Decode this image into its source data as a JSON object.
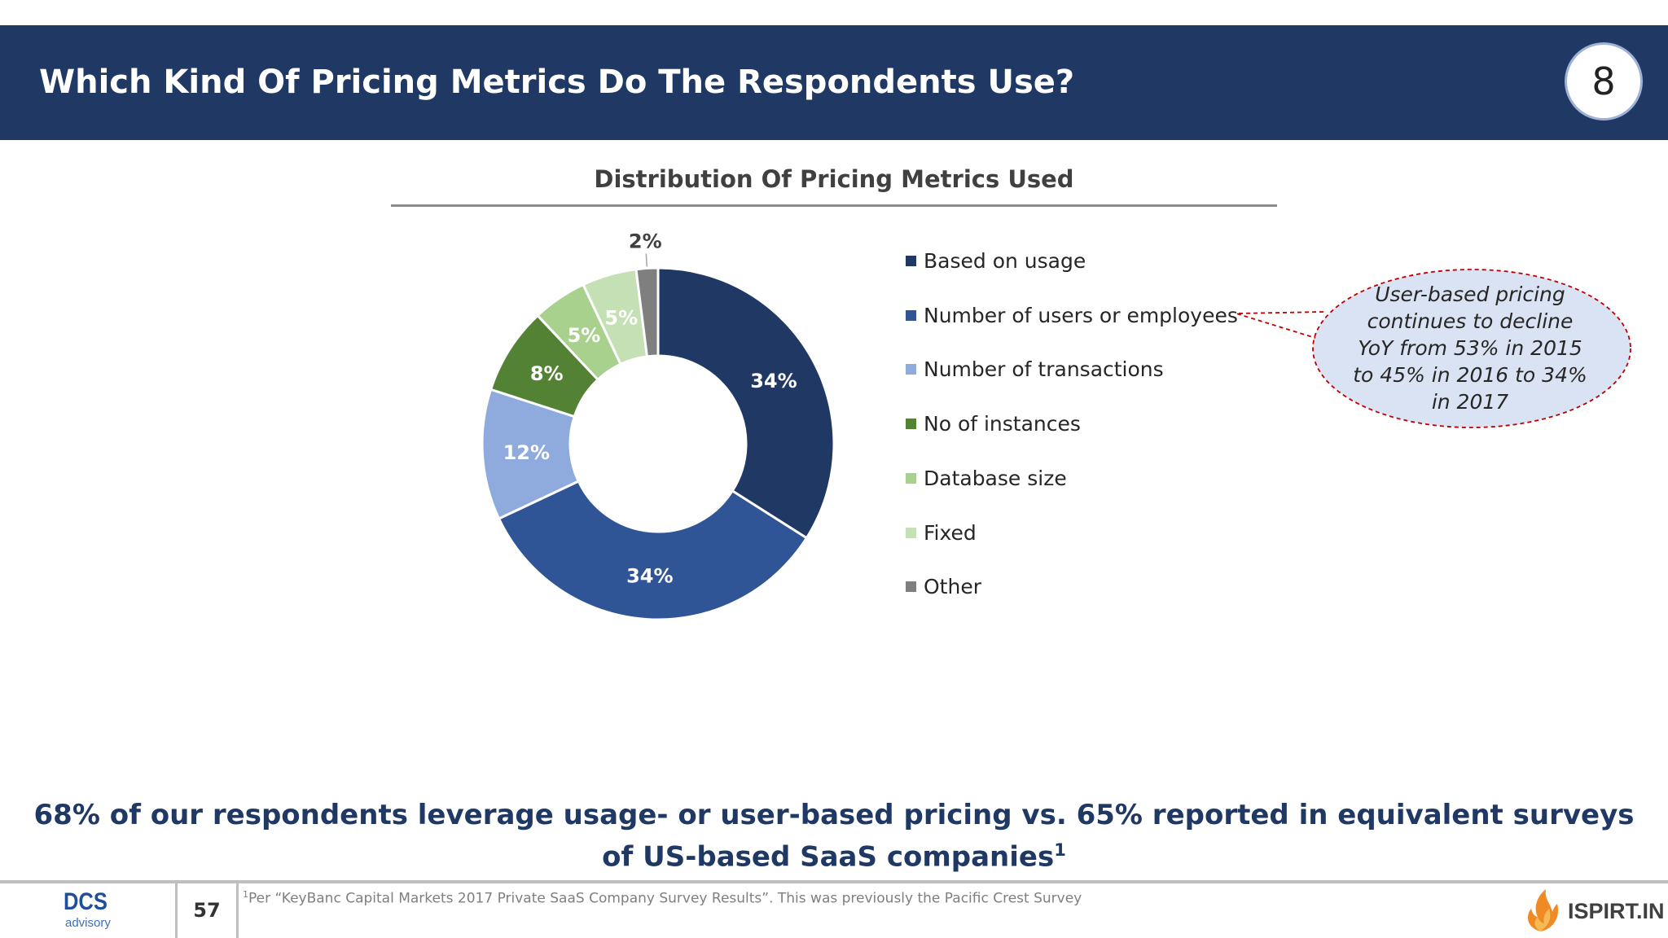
{
  "header": {
    "title": "Which Kind Of Pricing Metrics Do The Respondents Use?",
    "slide_badge": "8"
  },
  "chart_data": {
    "type": "pie",
    "title": "Distribution Of Pricing Metrics Used",
    "donut": true,
    "legend_position": "right",
    "slices": [
      {
        "name": "Based on usage",
        "value": 34,
        "label": "34%",
        "color": "#1f3864"
      },
      {
        "name": "Number of users or employees",
        "value": 34,
        "label": "34%",
        "color": "#2f5597"
      },
      {
        "name": "Number of transactions",
        "value": 12,
        "label": "12%",
        "color": "#8faadc"
      },
      {
        "name": "No of instances",
        "value": 8,
        "label": "8%",
        "color": "#548235"
      },
      {
        "name": "Database size",
        "value": 5,
        "label": "5%",
        "color": "#a9d18e"
      },
      {
        "name": "Fixed",
        "value": 5,
        "label": "5%",
        "color": "#c5e0b4"
      },
      {
        "name": "Other",
        "value": 2,
        "label": "2%",
        "color": "#7f7f7f"
      }
    ]
  },
  "callout": {
    "lines": [
      "User-based pricing",
      "continues to decline",
      "YoY from 53% in 2015",
      "to 45% in 2016 to 34%",
      "in 2017"
    ]
  },
  "takeaway": {
    "text": "68% of our respondents leverage usage- or user-based pricing vs. 65% reported in equivalent surveys of US-based SaaS companies",
    "sup": "1"
  },
  "footer": {
    "logo_main": "DCS",
    "logo_sub": "advisory",
    "page_number": "57",
    "footnote_sup": "1",
    "footnote": "Per “KeyBanc Capital Markets 2017 Private SaaS Company Survey Results”. This was previously the Pacific Crest Survey",
    "brand": "ISPIRT.IN"
  }
}
